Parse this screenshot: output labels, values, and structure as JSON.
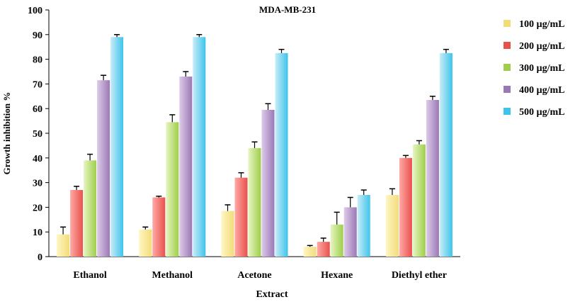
{
  "chart_data": {
    "type": "bar",
    "title": "MDA-MB-231",
    "xlabel": "Extract",
    "ylabel": "Growth inhibition %",
    "ylim": [
      0,
      100
    ],
    "yticks": [
      "0",
      "10",
      "20",
      "30",
      "40",
      "50",
      "60",
      "70",
      "80",
      "90",
      "100"
    ],
    "categories": [
      "Ethanol",
      "Methanol",
      "Acetone",
      "Hexane",
      "Diethyl ether"
    ],
    "grid": false,
    "legend_position": "right",
    "series": [
      {
        "name": "100 µg/mL",
        "color_light": "#fff6c2",
        "color_dark": "#f2dc7a",
        "values": [
          9,
          11,
          18.5,
          4,
          25
        ],
        "errors": [
          3,
          1,
          2.5,
          0.5,
          2.5
        ]
      },
      {
        "name": "200 µg/mL",
        "color_light": "#ffaaa6",
        "color_dark": "#e8514c",
        "values": [
          27,
          24,
          32,
          6,
          40
        ],
        "errors": [
          1.5,
          0.5,
          2,
          1.5,
          1
        ]
      },
      {
        "name": "300 µg/mL",
        "color_light": "#e6f5c2",
        "color_dark": "#9fce4a",
        "values": [
          39,
          54.5,
          44,
          13,
          45.5
        ],
        "errors": [
          2.5,
          3,
          2.5,
          5,
          1.5
        ]
      },
      {
        "name": "400 µg/mL",
        "color_light": "#ddcbe8",
        "color_dark": "#9a78b6",
        "values": [
          71.5,
          73,
          59.5,
          20,
          63.5
        ],
        "errors": [
          2,
          2,
          2.5,
          4,
          1.5
        ]
      },
      {
        "name": "500 µg/mL",
        "color_light": "#c8ecf8",
        "color_dark": "#3ec4ea",
        "values": [
          89,
          89,
          82.5,
          25,
          82.5
        ],
        "errors": [
          1,
          1,
          1.5,
          2,
          1.5
        ]
      }
    ]
  }
}
